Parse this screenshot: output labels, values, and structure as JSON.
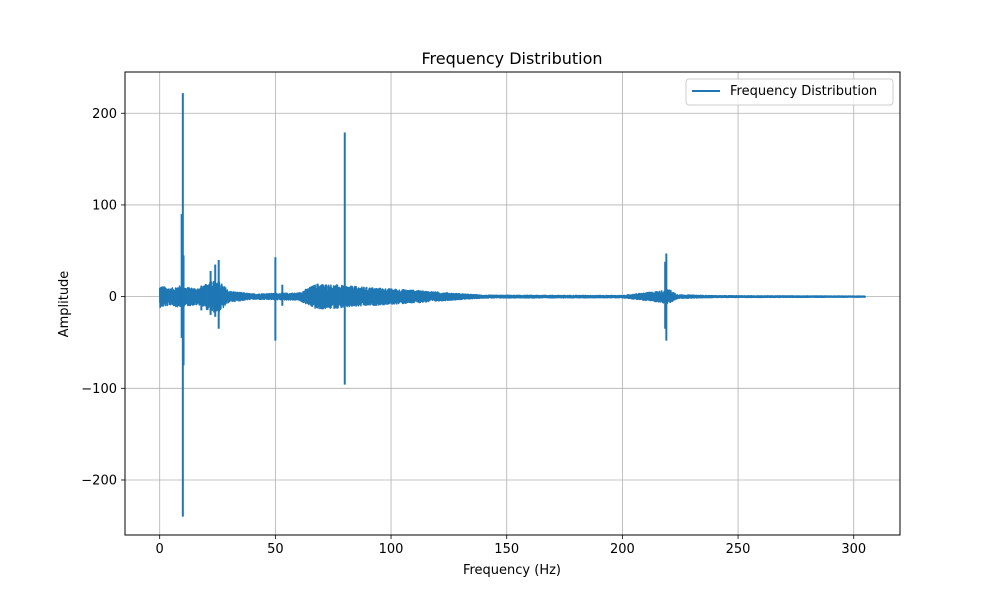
{
  "chart_data": {
    "type": "line",
    "title": "Frequency Distribution",
    "xlabel": "Frequency (Hz)",
    "ylabel": "Amplitude",
    "xlim": [
      -15,
      320
    ],
    "ylim": [
      -260,
      245
    ],
    "xticks": [
      0,
      50,
      100,
      150,
      200,
      250,
      300
    ],
    "xtick_labels": [
      "0",
      "50",
      "100",
      "150",
      "200",
      "250",
      "300"
    ],
    "yticks": [
      -200,
      -100,
      0,
      100,
      200
    ],
    "ytick_labels": [
      "−200",
      "−100",
      "0",
      "100",
      "200"
    ],
    "grid": true,
    "legend_position": "upper right",
    "series": [
      {
        "name": "Frequency Distribution",
        "color": "#1f77b4",
        "x_range": [
          0,
          305
        ],
        "envelope": [
          {
            "x": 0,
            "amp": 12
          },
          {
            "x": 5,
            "amp": 9
          },
          {
            "x": 8,
            "amp": 12
          },
          {
            "x": 12,
            "amp": 10
          },
          {
            "x": 18,
            "amp": 9
          },
          {
            "x": 22,
            "amp": 18
          },
          {
            "x": 26,
            "amp": 16
          },
          {
            "x": 30,
            "amp": 6
          },
          {
            "x": 40,
            "amp": 3
          },
          {
            "x": 60,
            "amp": 4
          },
          {
            "x": 68,
            "amp": 14
          },
          {
            "x": 75,
            "amp": 13
          },
          {
            "x": 90,
            "amp": 10
          },
          {
            "x": 110,
            "amp": 7
          },
          {
            "x": 125,
            "amp": 4
          },
          {
            "x": 140,
            "amp": 1.5
          },
          {
            "x": 200,
            "amp": 1.2
          },
          {
            "x": 216,
            "amp": 6
          },
          {
            "x": 220,
            "amp": 8
          },
          {
            "x": 224,
            "amp": 2
          },
          {
            "x": 240,
            "amp": 1
          },
          {
            "x": 305,
            "amp": 0.6
          }
        ],
        "peaks": [
          {
            "x": 9.5,
            "min": -45,
            "max": 90
          },
          {
            "x": 10,
            "min": -240,
            "max": 222
          },
          {
            "x": 10.3,
            "min": -75,
            "max": 45
          },
          {
            "x": 18,
            "min": -15,
            "max": 12
          },
          {
            "x": 22,
            "min": -20,
            "max": 28
          },
          {
            "x": 24,
            "min": -22,
            "max": 35
          },
          {
            "x": 25.5,
            "min": -35,
            "max": 40
          },
          {
            "x": 50,
            "min": -48,
            "max": 43
          },
          {
            "x": 53,
            "min": -10,
            "max": 13
          },
          {
            "x": 80,
            "min": -96,
            "max": 179
          },
          {
            "x": 218.5,
            "min": -35,
            "max": 38
          },
          {
            "x": 219,
            "min": -48,
            "max": 47
          }
        ]
      }
    ]
  }
}
